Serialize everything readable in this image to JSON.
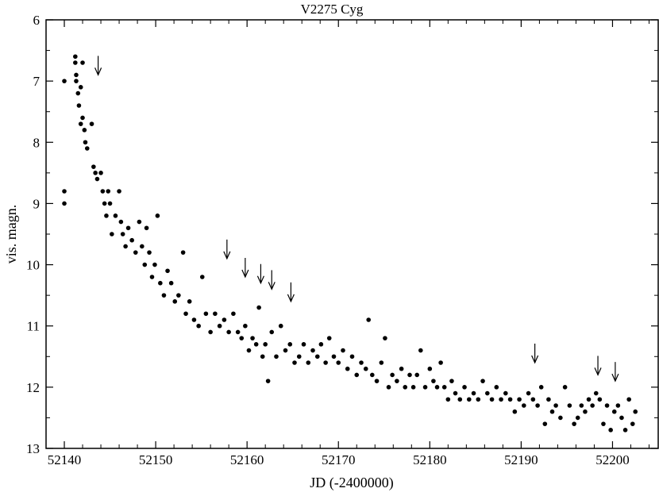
{
  "chart_data": {
    "type": "scatter",
    "title": "V2275 Cyg",
    "xlabel": "JD (-2400000)",
    "ylabel": "vis. magn.",
    "xlim": [
      52138,
      52205
    ],
    "ylim": [
      6,
      13
    ],
    "y_inverted": true,
    "grid": false,
    "legend": "none",
    "x_ticks": [
      52140,
      52150,
      52160,
      52170,
      52180,
      52190,
      52200
    ],
    "y_ticks": [
      6,
      7,
      8,
      9,
      10,
      11,
      12,
      13
    ],
    "marker_color": "#000000",
    "series": [
      {
        "points": [
          [
            52140.0,
            7.0
          ],
          [
            52140.0,
            8.8
          ],
          [
            52140.0,
            9.0
          ],
          [
            52141.2,
            6.6
          ],
          [
            52141.2,
            6.7
          ],
          [
            52141.3,
            6.9
          ],
          [
            52141.3,
            7.0
          ],
          [
            52141.5,
            7.2
          ],
          [
            52141.6,
            7.4
          ],
          [
            52141.8,
            7.1
          ],
          [
            52142.0,
            6.7
          ],
          [
            52141.8,
            7.7
          ],
          [
            52142.0,
            7.6
          ],
          [
            52142.2,
            7.8
          ],
          [
            52142.3,
            8.0
          ],
          [
            52142.5,
            8.1
          ],
          [
            52143.0,
            7.7
          ],
          [
            52143.2,
            8.4
          ],
          [
            52143.4,
            8.5
          ],
          [
            52143.6,
            8.6
          ],
          [
            52144.0,
            8.5
          ],
          [
            52144.2,
            8.8
          ],
          [
            52144.4,
            9.0
          ],
          [
            52144.6,
            9.2
          ],
          [
            52144.8,
            8.8
          ],
          [
            52145.0,
            9.0
          ],
          [
            52145.2,
            9.5
          ],
          [
            52145.6,
            9.2
          ],
          [
            52146.0,
            8.8
          ],
          [
            52146.2,
            9.3
          ],
          [
            52146.4,
            9.5
          ],
          [
            52146.7,
            9.7
          ],
          [
            52147.0,
            9.4
          ],
          [
            52147.4,
            9.6
          ],
          [
            52147.8,
            9.8
          ],
          [
            52148.2,
            9.3
          ],
          [
            52148.5,
            9.7
          ],
          [
            52148.8,
            10.0
          ],
          [
            52149.0,
            9.4
          ],
          [
            52149.3,
            9.8
          ],
          [
            52149.6,
            10.2
          ],
          [
            52149.9,
            10.0
          ],
          [
            52150.2,
            9.2
          ],
          [
            52150.5,
            10.3
          ],
          [
            52150.9,
            10.5
          ],
          [
            52151.3,
            10.1
          ],
          [
            52151.7,
            10.3
          ],
          [
            52152.1,
            10.6
          ],
          [
            52152.5,
            10.5
          ],
          [
            52153.0,
            9.8
          ],
          [
            52153.3,
            10.8
          ],
          [
            52153.7,
            10.6
          ],
          [
            52154.2,
            10.9
          ],
          [
            52154.7,
            11.0
          ],
          [
            52155.1,
            10.2
          ],
          [
            52155.5,
            10.8
          ],
          [
            52156.0,
            11.1
          ],
          [
            52156.5,
            10.8
          ],
          [
            52157.0,
            11.0
          ],
          [
            52157.5,
            10.9
          ],
          [
            52158.0,
            11.1
          ],
          [
            52158.5,
            10.8
          ],
          [
            52159.0,
            11.1
          ],
          [
            52159.4,
            11.2
          ],
          [
            52159.8,
            11.0
          ],
          [
            52160.2,
            11.4
          ],
          [
            52160.6,
            11.2
          ],
          [
            52161.0,
            11.3
          ],
          [
            52161.3,
            10.7
          ],
          [
            52161.7,
            11.5
          ],
          [
            52162.0,
            11.3
          ],
          [
            52162.3,
            11.9
          ],
          [
            52162.7,
            11.1
          ],
          [
            52163.2,
            11.5
          ],
          [
            52163.7,
            11.0
          ],
          [
            52164.2,
            11.4
          ],
          [
            52164.7,
            11.3
          ],
          [
            52165.2,
            11.6
          ],
          [
            52165.7,
            11.5
          ],
          [
            52166.2,
            11.3
          ],
          [
            52166.7,
            11.6
          ],
          [
            52167.2,
            11.4
          ],
          [
            52167.7,
            11.5
          ],
          [
            52168.1,
            11.3
          ],
          [
            52168.6,
            11.6
          ],
          [
            52169.0,
            11.2
          ],
          [
            52169.5,
            11.5
          ],
          [
            52170.0,
            11.6
          ],
          [
            52170.5,
            11.4
          ],
          [
            52171.0,
            11.7
          ],
          [
            52171.5,
            11.5
          ],
          [
            52172.0,
            11.8
          ],
          [
            52172.5,
            11.6
          ],
          [
            52173.0,
            11.7
          ],
          [
            52173.3,
            10.9
          ],
          [
            52173.7,
            11.8
          ],
          [
            52174.2,
            11.9
          ],
          [
            52174.7,
            11.6
          ],
          [
            52175.1,
            11.2
          ],
          [
            52175.5,
            12.0
          ],
          [
            52175.9,
            11.8
          ],
          [
            52176.4,
            11.9
          ],
          [
            52176.9,
            11.7
          ],
          [
            52177.3,
            12.0
          ],
          [
            52177.8,
            11.8
          ],
          [
            52178.2,
            12.0
          ],
          [
            52178.6,
            11.8
          ],
          [
            52179.0,
            11.4
          ],
          [
            52179.5,
            12.0
          ],
          [
            52180.0,
            11.7
          ],
          [
            52180.4,
            11.9
          ],
          [
            52180.8,
            12.0
          ],
          [
            52181.2,
            11.6
          ],
          [
            52181.6,
            12.0
          ],
          [
            52182.0,
            12.2
          ],
          [
            52182.4,
            11.9
          ],
          [
            52182.8,
            12.1
          ],
          [
            52183.3,
            12.2
          ],
          [
            52183.8,
            12.0
          ],
          [
            52184.3,
            12.2
          ],
          [
            52184.8,
            12.1
          ],
          [
            52185.3,
            12.2
          ],
          [
            52185.8,
            11.9
          ],
          [
            52186.3,
            12.1
          ],
          [
            52186.8,
            12.2
          ],
          [
            52187.3,
            12.0
          ],
          [
            52187.8,
            12.2
          ],
          [
            52188.3,
            12.1
          ],
          [
            52188.8,
            12.2
          ],
          [
            52189.3,
            12.4
          ],
          [
            52189.8,
            12.2
          ],
          [
            52190.3,
            12.3
          ],
          [
            52190.8,
            12.1
          ],
          [
            52191.3,
            12.2
          ],
          [
            52191.8,
            12.3
          ],
          [
            52192.2,
            12.0
          ],
          [
            52192.6,
            12.6
          ],
          [
            52193.0,
            12.2
          ],
          [
            52193.4,
            12.4
          ],
          [
            52193.8,
            12.3
          ],
          [
            52194.3,
            12.5
          ],
          [
            52194.8,
            12.0
          ],
          [
            52195.3,
            12.3
          ],
          [
            52195.8,
            12.6
          ],
          [
            52196.2,
            12.5
          ],
          [
            52196.6,
            12.3
          ],
          [
            52197.0,
            12.4
          ],
          [
            52197.4,
            12.2
          ],
          [
            52197.8,
            12.3
          ],
          [
            52198.2,
            12.1
          ],
          [
            52198.6,
            12.2
          ],
          [
            52199.0,
            12.6
          ],
          [
            52199.4,
            12.3
          ],
          [
            52199.8,
            12.7
          ],
          [
            52200.2,
            12.4
          ],
          [
            52200.6,
            12.3
          ],
          [
            52201.0,
            12.5
          ],
          [
            52201.4,
            12.7
          ],
          [
            52201.8,
            12.2
          ],
          [
            52202.2,
            12.6
          ],
          [
            52202.5,
            12.4
          ]
        ]
      }
    ],
    "upper_limit_arrows": [
      {
        "x": 52143.7,
        "y": 6.9
      },
      {
        "x": 52157.8,
        "y": 9.9
      },
      {
        "x": 52159.8,
        "y": 10.2
      },
      {
        "x": 52161.5,
        "y": 10.3
      },
      {
        "x": 52162.7,
        "y": 10.4
      },
      {
        "x": 52164.8,
        "y": 10.6
      },
      {
        "x": 52191.5,
        "y": 11.6
      },
      {
        "x": 52198.4,
        "y": 11.8
      },
      {
        "x": 52200.3,
        "y": 11.9
      }
    ]
  }
}
